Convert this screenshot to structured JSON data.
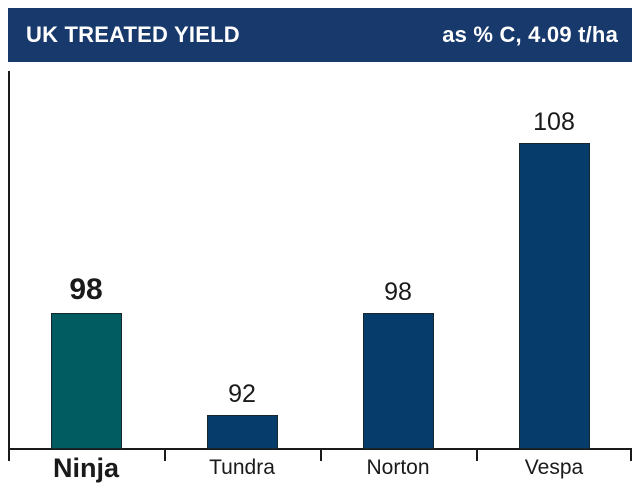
{
  "header": {
    "title": "UK TREATED YIELD",
    "subtitle": "as % C, 4.09 t/ha",
    "bg_color": "#17396B",
    "text_color": "#FFFFFF"
  },
  "chart_data": {
    "type": "bar",
    "title": "UK TREATED YIELD",
    "subtitle": "as % C, 4.09 t/ha",
    "categories": [
      "Ninja",
      "Tundra",
      "Norton",
      "Vespa"
    ],
    "values": [
      98,
      92,
      98,
      108
    ],
    "data_labels": [
      "98",
      "92",
      "98",
      "108"
    ],
    "highlight_index": 0,
    "highlight_color": "#005C60",
    "bar_color": "#053C6B",
    "bar_border_color": "#16272E",
    "axis_color": "#1A1A1A",
    "xlabel": "",
    "ylabel": "",
    "ylim": [
      90,
      110
    ],
    "grid": false,
    "legend": false,
    "background": "#FFFFFF"
  }
}
